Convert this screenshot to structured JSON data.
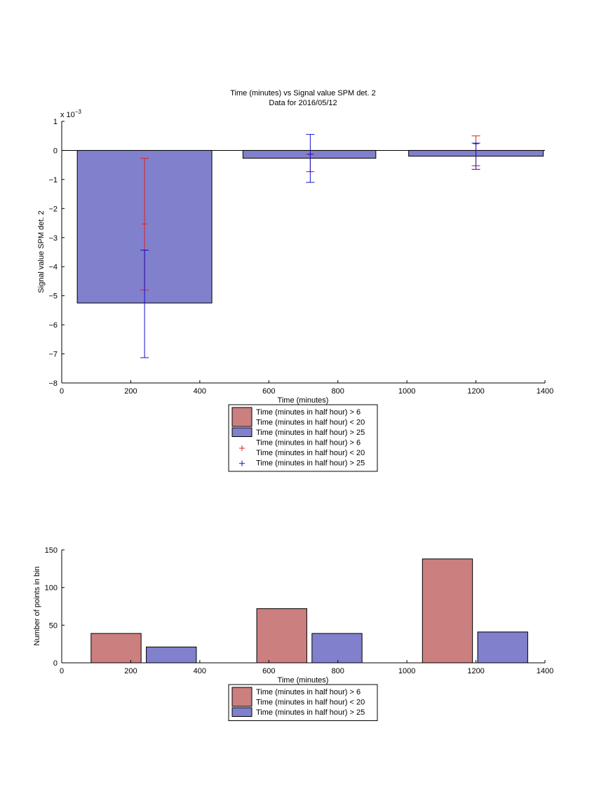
{
  "chart_data": [
    {
      "type": "bar",
      "title": "Time (minutes) vs Signal value SPM det. 2",
      "subtitle": "Data for 2016/05/12",
      "xlabel": "Time (minutes)",
      "ylabel": "Signal value SPM det. 2",
      "y_exponent_label": "x 10",
      "y_exponent_power": "−3",
      "xlim": [
        0,
        1400
      ],
      "ylim": [
        -8,
        1
      ],
      "xticks": [
        "0",
        "200",
        "400",
        "600",
        "800",
        "1000",
        "1200",
        "1400"
      ],
      "yticks": [
        "1",
        "0",
        "−1",
        "−2",
        "−3",
        "−4",
        "−5",
        "−6",
        "−7",
        "−8"
      ],
      "grid": false,
      "legend_position": "below",
      "series": [
        {
          "name": "Time (minutes in half hour) > 25",
          "color": "#8080cc",
          "bins": [
            [
              45,
              435
            ],
            [
              525,
              910
            ],
            [
              1005,
              1395
            ]
          ],
          "values": [
            -5.25,
            -0.27,
            -0.2
          ]
        }
      ],
      "error_bars": [
        {
          "color": "#dd2222",
          "x": [
            240,
            720,
            1200
          ],
          "y": [
            -2.53,
            -0.73,
            -0.53
          ],
          "low": [
            -4.8,
            -0.73,
            -0.53
          ],
          "high": [
            -0.27,
            -0.13,
            0.5
          ]
        },
        {
          "color": "#1111cc",
          "x": [
            240,
            720,
            1200
          ],
          "y": [
            -3.43,
            -0.13,
            0.23
          ],
          "low": [
            -7.13,
            -1.1,
            -0.65
          ],
          "high": [
            -3.43,
            0.55,
            0.25
          ]
        }
      ],
      "legend": [
        {
          "kind": "patch",
          "color": "#cc7f7f",
          "lines": [
            "Time (minutes in half hour) > 6",
            "Time (minutes in half hour) < 20"
          ]
        },
        {
          "kind": "patch",
          "color": "#8080cc",
          "lines": [
            "Time (minutes in half hour) > 25"
          ]
        },
        {
          "kind": "marker",
          "color": "#dd2222",
          "lines": [
            "Time (minutes in half hour) > 6",
            "Time (minutes in half hour) < 20"
          ]
        },
        {
          "kind": "marker",
          "color": "#1111cc",
          "lines": [
            "Time (minutes in half hour) > 25"
          ]
        }
      ]
    },
    {
      "type": "bar",
      "xlabel": "Time (minutes)",
      "ylabel": "Number of points in bin",
      "xlim": [
        0,
        1400
      ],
      "ylim": [
        0,
        150
      ],
      "xticks": [
        "0",
        "200",
        "400",
        "600",
        "800",
        "1000",
        "1200",
        "1400"
      ],
      "yticks": [
        "0",
        "50",
        "100",
        "150"
      ],
      "grid": false,
      "legend_position": "below",
      "series": [
        {
          "name": "Time (minutes in half hour) > 6 / Time (minutes in half hour) < 20",
          "color": "#cc7f7f",
          "bins": [
            [
              85,
              230
            ],
            [
              565,
              710
            ],
            [
              1045,
              1190
            ]
          ],
          "values": [
            39,
            72,
            138
          ]
        },
        {
          "name": "Time (minutes in half hour) > 25",
          "color": "#8080cc",
          "bins": [
            [
              245,
              390
            ],
            [
              725,
              870
            ],
            [
              1205,
              1350
            ]
          ],
          "values": [
            21,
            39,
            41
          ]
        }
      ],
      "legend": [
        {
          "kind": "patch",
          "color": "#cc7f7f",
          "lines": [
            "Time (minutes in half hour) > 6",
            "Time (minutes in half hour) < 20"
          ]
        },
        {
          "kind": "patch",
          "color": "#8080cc",
          "lines": [
            "Time (minutes in half hour) > 25"
          ]
        }
      ]
    }
  ]
}
